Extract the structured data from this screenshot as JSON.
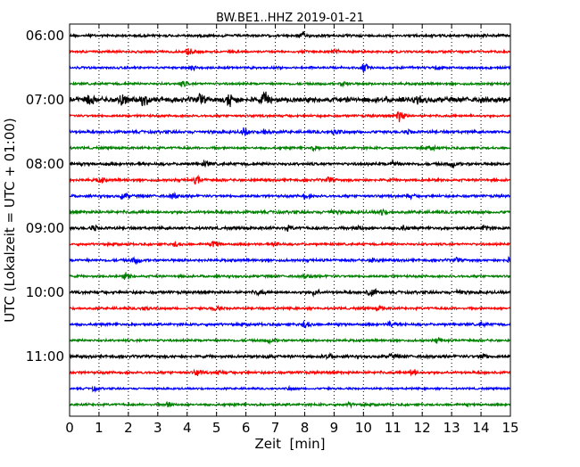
{
  "chart_data": {
    "type": "line",
    "title": "BW.BE1..HHZ 2019-01-21",
    "xlabel": "Zeit  [min]",
    "ylabel": "UTC (Lokalzeit = UTC + 01:00)",
    "xlim": [
      0,
      15
    ],
    "x_ticks": [
      "0",
      "1",
      "2",
      "3",
      "4",
      "5",
      "6",
      "7",
      "8",
      "9",
      "10",
      "11",
      "12",
      "13",
      "14",
      "15"
    ],
    "y_ticks": [
      "06:00",
      "07:00",
      "08:00",
      "09:00",
      "10:00",
      "11:00"
    ],
    "grid": {
      "vertical": "dotted",
      "horizontal": false
    },
    "trace_colors": [
      "#000000",
      "#ff0000",
      "#0000ff",
      "#008000"
    ],
    "traces": [
      {
        "start": "06:00",
        "color": "#000000",
        "level": 0.2,
        "events": [
          {
            "t": 7.9,
            "amp": 0.45
          }
        ]
      },
      {
        "start": "06:15",
        "color": "#ff0000",
        "level": 0.18,
        "events": [
          {
            "t": 4.0,
            "amp": 0.5
          },
          {
            "t": 9.0,
            "amp": 0.3
          }
        ]
      },
      {
        "start": "06:30",
        "color": "#0000ff",
        "level": 0.18,
        "events": [
          {
            "t": 4.1,
            "amp": 0.35
          },
          {
            "t": 10.0,
            "amp": 0.5
          },
          {
            "t": 12.5,
            "amp": 0.3
          }
        ]
      },
      {
        "start": "06:45",
        "color": "#008000",
        "level": 0.18,
        "events": [
          {
            "t": 3.8,
            "amp": 0.35
          },
          {
            "t": 9.3,
            "amp": 0.3
          }
        ]
      },
      {
        "start": "07:00",
        "color": "#000000",
        "level": 0.4,
        "events": [
          {
            "t": 0.6,
            "amp": 0.8
          },
          {
            "t": 1.7,
            "amp": 1.0
          },
          {
            "t": 2.5,
            "amp": 0.6
          },
          {
            "t": 4.4,
            "amp": 0.6
          },
          {
            "t": 5.4,
            "amp": 1.1
          },
          {
            "t": 6.6,
            "amp": 0.9
          },
          {
            "t": 11.8,
            "amp": 0.4
          }
        ]
      },
      {
        "start": "07:15",
        "color": "#ff0000",
        "level": 0.18,
        "events": [
          {
            "t": 11.2,
            "amp": 0.9
          }
        ]
      },
      {
        "start": "07:30",
        "color": "#0000ff",
        "level": 0.22,
        "events": [
          {
            "t": 5.9,
            "amp": 0.45
          },
          {
            "t": 6.6,
            "amp": 0.45
          },
          {
            "t": 9.0,
            "amp": 0.3
          },
          {
            "t": 11.5,
            "amp": 0.25
          }
        ]
      },
      {
        "start": "07:45",
        "color": "#008000",
        "level": 0.18,
        "events": [
          {
            "t": 8.3,
            "amp": 0.3
          },
          {
            "t": 12.3,
            "amp": 0.2
          }
        ]
      },
      {
        "start": "08:00",
        "color": "#000000",
        "level": 0.22,
        "events": [
          {
            "t": 4.6,
            "amp": 0.35
          },
          {
            "t": 11.0,
            "amp": 0.4
          },
          {
            "t": 13.0,
            "amp": 0.35
          }
        ]
      },
      {
        "start": "08:15",
        "color": "#ff0000",
        "level": 0.2,
        "events": [
          {
            "t": 1.0,
            "amp": 0.3
          },
          {
            "t": 4.3,
            "amp": 0.5
          },
          {
            "t": 8.8,
            "amp": 0.3
          }
        ]
      },
      {
        "start": "08:30",
        "color": "#0000ff",
        "level": 0.2,
        "events": [
          {
            "t": 1.8,
            "amp": 0.45
          },
          {
            "t": 3.5,
            "amp": 0.35
          },
          {
            "t": 8.0,
            "amp": 0.35
          },
          {
            "t": 11.5,
            "amp": 0.3
          }
        ]
      },
      {
        "start": "08:45",
        "color": "#008000",
        "level": 0.22,
        "events": [
          {
            "t": 8.9,
            "amp": 0.3
          },
          {
            "t": 10.6,
            "amp": 0.4
          }
        ]
      },
      {
        "start": "09:00",
        "color": "#000000",
        "level": 0.22,
        "events": [
          {
            "t": 0.8,
            "amp": 0.35
          },
          {
            "t": 7.4,
            "amp": 0.3
          },
          {
            "t": 9.8,
            "amp": 0.3
          },
          {
            "t": 11.3,
            "amp": 0.3
          },
          {
            "t": 14.1,
            "amp": 0.4
          }
        ]
      },
      {
        "start": "09:15",
        "color": "#ff0000",
        "level": 0.18,
        "events": [
          {
            "t": 3.6,
            "amp": 0.3
          },
          {
            "t": 4.9,
            "amp": 0.45
          },
          {
            "t": 7.0,
            "amp": 0.25
          }
        ]
      },
      {
        "start": "09:30",
        "color": "#0000ff",
        "level": 0.2,
        "events": [
          {
            "t": 2.2,
            "amp": 0.45
          },
          {
            "t": 10.3,
            "amp": 0.45
          },
          {
            "t": 13.1,
            "amp": 0.3
          },
          {
            "t": 14.9,
            "amp": 0.3
          }
        ]
      },
      {
        "start": "09:45",
        "color": "#008000",
        "level": 0.18,
        "events": [
          {
            "t": 1.9,
            "amp": 0.45
          },
          {
            "t": 8.0,
            "amp": 0.3
          }
        ]
      },
      {
        "start": "10:00",
        "color": "#000000",
        "level": 0.22,
        "events": [
          {
            "t": 6.4,
            "amp": 0.3
          },
          {
            "t": 8.3,
            "amp": 0.4
          },
          {
            "t": 10.2,
            "amp": 0.7
          },
          {
            "t": 13.2,
            "amp": 0.3
          }
        ]
      },
      {
        "start": "10:15",
        "color": "#ff0000",
        "level": 0.18,
        "events": [
          {
            "t": 2.5,
            "amp": 0.3
          },
          {
            "t": 4.9,
            "amp": 0.35
          },
          {
            "t": 10.5,
            "amp": 0.3
          }
        ]
      },
      {
        "start": "10:30",
        "color": "#0000ff",
        "level": 0.2,
        "events": [
          {
            "t": 8.0,
            "amp": 0.45
          },
          {
            "t": 10.9,
            "amp": 0.4
          },
          {
            "t": 14.0,
            "amp": 0.35
          }
        ]
      },
      {
        "start": "10:45",
        "color": "#008000",
        "level": 0.18,
        "events": [
          {
            "t": 6.8,
            "amp": 0.3
          },
          {
            "t": 12.5,
            "amp": 0.35
          }
        ]
      },
      {
        "start": "11:00",
        "color": "#000000",
        "level": 0.22,
        "events": [
          {
            "t": 6.7,
            "amp": 0.35
          },
          {
            "t": 8.7,
            "amp": 0.35
          },
          {
            "t": 10.9,
            "amp": 0.3
          },
          {
            "t": 14.0,
            "amp": 0.45
          }
        ]
      },
      {
        "start": "11:15",
        "color": "#ff0000",
        "level": 0.2,
        "events": [
          {
            "t": 4.3,
            "amp": 0.45
          },
          {
            "t": 5.0,
            "amp": 0.3
          },
          {
            "t": 11.6,
            "amp": 0.6
          }
        ]
      },
      {
        "start": "11:30",
        "color": "#0000ff",
        "level": 0.15,
        "events": [
          {
            "t": 0.8,
            "amp": 0.3
          },
          {
            "t": 7.5,
            "amp": 0.25
          }
        ]
      },
      {
        "start": "11:45",
        "color": "#008000",
        "level": 0.18,
        "events": [
          {
            "t": 3.3,
            "amp": 0.35
          },
          {
            "t": 9.5,
            "amp": 0.25
          }
        ]
      }
    ]
  }
}
